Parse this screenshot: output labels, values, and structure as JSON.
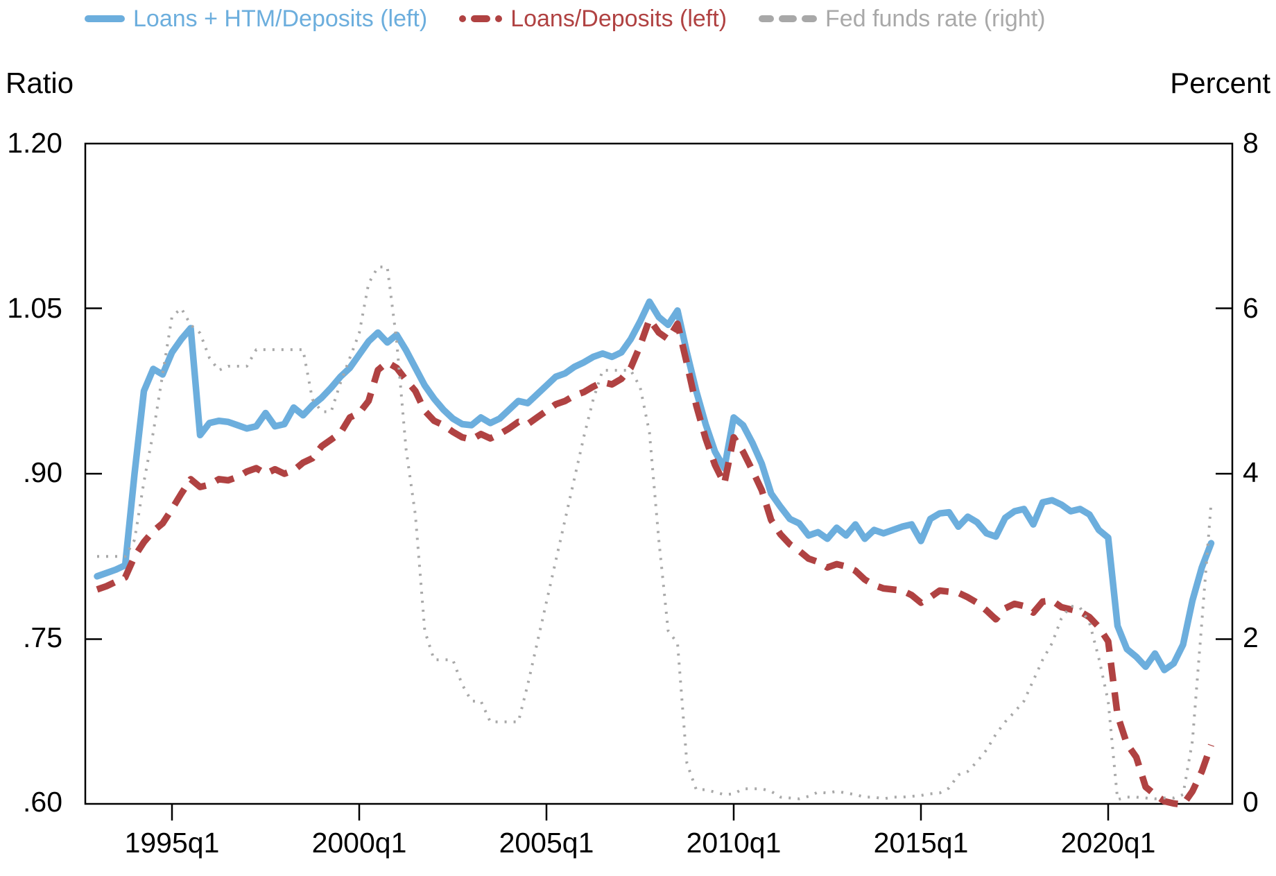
{
  "colors": {
    "blue": "#6CAEDD",
    "red": "#B04242",
    "gray_line": "#A8A8A8",
    "gray_text": "#A9A9A9",
    "axis": "#000000",
    "background": "#FFFFFF"
  },
  "chart_data": {
    "type": "line",
    "title": "",
    "legend_position": "top",
    "grid": false,
    "x": {
      "start": "1993q1",
      "end": "2022q4",
      "frequency": "quarterly",
      "count": 120,
      "tick_labels": [
        "1995q1",
        "2000q1",
        "2005q1",
        "2010q1",
        "2015q1",
        "2020q1"
      ]
    },
    "left_axis": {
      "label": "Ratio",
      "range": [
        0.6,
        1.2
      ],
      "ticks": [
        1.2,
        1.05,
        0.9,
        0.75,
        0.6
      ],
      "tick_labels": [
        "1.20",
        "1.05",
        ".90",
        ".75",
        ".60"
      ]
    },
    "right_axis": {
      "label": "Percent",
      "range": [
        0,
        8
      ],
      "ticks": [
        8,
        6,
        4,
        2,
        0
      ],
      "tick_labels": [
        "8",
        "6",
        "4",
        "2",
        "0"
      ]
    },
    "series": [
      {
        "name": "Loans + HTM/Deposits (left)",
        "axis": "left",
        "style": "solid",
        "color": "#6CAEDD",
        "values": [
          0.807,
          0.81,
          0.813,
          0.817,
          0.9,
          0.975,
          0.995,
          0.99,
          1.01,
          1.022,
          1.032,
          0.935,
          0.946,
          0.948,
          0.947,
          0.944,
          0.941,
          0.943,
          0.955,
          0.943,
          0.945,
          0.96,
          0.953,
          0.962,
          0.969,
          0.978,
          0.988,
          0.996,
          1.008,
          1.02,
          1.028,
          1.019,
          1.026,
          1.012,
          0.996,
          0.98,
          0.968,
          0.958,
          0.95,
          0.945,
          0.944,
          0.951,
          0.946,
          0.95,
          0.958,
          0.966,
          0.964,
          0.972,
          0.98,
          0.988,
          0.991,
          0.997,
          1.001,
          1.006,
          1.009,
          1.006,
          1.01,
          1.022,
          1.038,
          1.056,
          1.042,
          1.035,
          1.048,
          1.01,
          0.975,
          0.945,
          0.92,
          0.905,
          0.951,
          0.944,
          0.928,
          0.909,
          0.882,
          0.87,
          0.859,
          0.855,
          0.844,
          0.847,
          0.841,
          0.851,
          0.844,
          0.854,
          0.841,
          0.849,
          0.846,
          0.849,
          0.852,
          0.854,
          0.839,
          0.859,
          0.864,
          0.865,
          0.852,
          0.861,
          0.856,
          0.846,
          0.843,
          0.86,
          0.866,
          0.868,
          0.854,
          0.874,
          0.876,
          0.872,
          0.866,
          0.868,
          0.863,
          0.849,
          0.842,
          0.762,
          0.741,
          0.734,
          0.725,
          0.737,
          0.722,
          0.728,
          0.745,
          0.785,
          0.815,
          0.837
        ]
      },
      {
        "name": "Loans/Deposits (left)",
        "axis": "left",
        "style": "dashed",
        "color": "#B04242",
        "values": [
          0.795,
          0.798,
          0.802,
          0.806,
          0.825,
          0.838,
          0.848,
          0.855,
          0.868,
          0.882,
          0.895,
          0.888,
          0.89,
          0.895,
          0.894,
          0.897,
          0.902,
          0.905,
          0.9,
          0.904,
          0.9,
          0.903,
          0.91,
          0.914,
          0.925,
          0.931,
          0.937,
          0.951,
          0.955,
          0.966,
          0.994,
          1.001,
          0.996,
          0.985,
          0.975,
          0.957,
          0.948,
          0.944,
          0.938,
          0.933,
          0.931,
          0.936,
          0.932,
          0.936,
          0.941,
          0.947,
          0.945,
          0.951,
          0.957,
          0.963,
          0.966,
          0.971,
          0.974,
          0.979,
          0.983,
          0.981,
          0.986,
          0.996,
          1.016,
          1.04,
          1.028,
          1.022,
          1.036,
          1.0,
          0.962,
          0.932,
          0.908,
          0.891,
          0.933,
          0.92,
          0.903,
          0.885,
          0.858,
          0.845,
          0.836,
          0.83,
          0.823,
          0.82,
          0.815,
          0.818,
          0.816,
          0.812,
          0.804,
          0.799,
          0.796,
          0.795,
          0.794,
          0.79,
          0.783,
          0.788,
          0.794,
          0.793,
          0.792,
          0.788,
          0.783,
          0.776,
          0.768,
          0.778,
          0.782,
          0.78,
          0.774,
          0.784,
          0.785,
          0.779,
          0.777,
          0.775,
          0.77,
          0.761,
          0.748,
          0.681,
          0.655,
          0.643,
          0.616,
          0.609,
          0.603,
          0.601,
          0.6,
          0.612,
          0.63,
          0.654
        ]
      },
      {
        "name": "Fed funds rate (right)",
        "axis": "right",
        "style": "dotted",
        "color": "#A8A8A8",
        "values": [
          3.0,
          3.0,
          3.0,
          3.0,
          3.2,
          3.9,
          4.5,
          5.2,
          5.9,
          6.0,
          5.8,
          5.7,
          5.4,
          5.25,
          5.3,
          5.3,
          5.3,
          5.5,
          5.5,
          5.5,
          5.5,
          5.5,
          5.5,
          4.9,
          4.75,
          4.75,
          5.1,
          5.4,
          5.7,
          6.3,
          6.5,
          6.5,
          5.6,
          4.3,
          3.5,
          2.1,
          1.75,
          1.75,
          1.75,
          1.45,
          1.25,
          1.25,
          1.0,
          1.0,
          1.0,
          1.0,
          1.45,
          1.95,
          2.45,
          2.95,
          3.45,
          3.95,
          4.45,
          4.9,
          5.25,
          5.25,
          5.25,
          5.25,
          5.05,
          4.5,
          3.2,
          2.1,
          1.95,
          0.5,
          0.18,
          0.18,
          0.15,
          0.12,
          0.13,
          0.19,
          0.19,
          0.19,
          0.16,
          0.09,
          0.08,
          0.07,
          0.1,
          0.15,
          0.14,
          0.16,
          0.14,
          0.12,
          0.09,
          0.09,
          0.07,
          0.09,
          0.09,
          0.1,
          0.11,
          0.13,
          0.14,
          0.2,
          0.36,
          0.4,
          0.52,
          0.66,
          0.85,
          1.0,
          1.12,
          1.25,
          1.5,
          1.75,
          1.95,
          2.25,
          2.4,
          2.38,
          2.2,
          1.77,
          1.25,
          0.06,
          0.09,
          0.09,
          0.08,
          0.07,
          0.08,
          0.08,
          0.12,
          0.77,
          2.2,
          3.65
        ]
      }
    ]
  }
}
